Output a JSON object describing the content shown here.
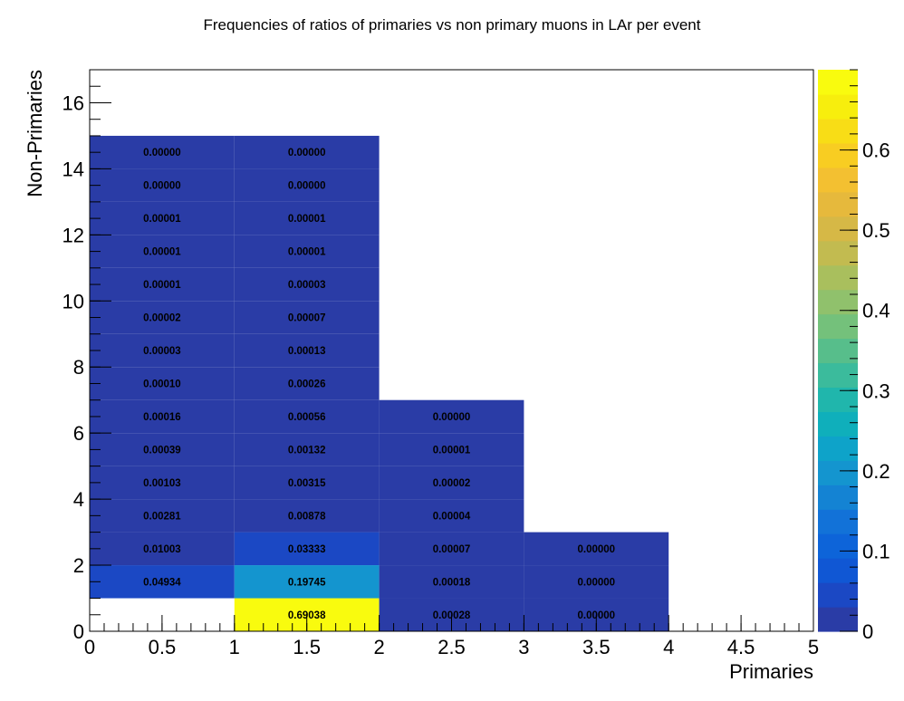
{
  "chart_data": {
    "type": "heatmap",
    "title": "Frequencies of ratios of primaries vs non primary muons in LAr per event",
    "xlabel": "Primaries",
    "ylabel": "Non-Primaries",
    "xlim": [
      0,
      5
    ],
    "ylim": [
      0,
      17
    ],
    "x_ticks": [
      "0",
      "0.5",
      "1",
      "1.5",
      "2",
      "2.5",
      "3",
      "3.5",
      "4",
      "4.5",
      "5"
    ],
    "y_ticks": [
      "0",
      "2",
      "4",
      "6",
      "8",
      "10",
      "12",
      "14",
      "16"
    ],
    "colorbar": {
      "range": [
        0,
        0.7
      ],
      "ticks": [
        "0",
        "0.1",
        "0.2",
        "0.3",
        "0.4",
        "0.5",
        "0.6"
      ],
      "palette": [
        "#2a3ca6",
        "#1b48c4",
        "#1057d4",
        "#0d64d9",
        "#1272d8",
        "#1483d3",
        "#1495cf",
        "#0ea3c9",
        "#0fafbb",
        "#20b6ac",
        "#3bbb9c",
        "#57be8b",
        "#74c17b",
        "#90c16c",
        "#a9bf5d",
        "#c2bb50",
        "#d6b846",
        "#e6b93c",
        "#f3c031",
        "#f8cd22",
        "#f8dd16",
        "#f7ee0d",
        "#f9fb0e"
      ]
    },
    "bins": [
      {
        "x": [
          0,
          1
        ],
        "y": [
          1,
          2
        ],
        "label": "0.04934",
        "value": 0.04934
      },
      {
        "x": [
          0,
          1
        ],
        "y": [
          2,
          3
        ],
        "label": "0.01003",
        "value": 0.01003
      },
      {
        "x": [
          0,
          1
        ],
        "y": [
          3,
          4
        ],
        "label": "0.00281",
        "value": 0.00281
      },
      {
        "x": [
          0,
          1
        ],
        "y": [
          4,
          5
        ],
        "label": "0.00103",
        "value": 0.00103
      },
      {
        "x": [
          0,
          1
        ],
        "y": [
          5,
          6
        ],
        "label": "0.00039",
        "value": 0.00039
      },
      {
        "x": [
          0,
          1
        ],
        "y": [
          6,
          7
        ],
        "label": "0.00016",
        "value": 0.00016
      },
      {
        "x": [
          0,
          1
        ],
        "y": [
          7,
          8
        ],
        "label": "0.00010",
        "value": 0.0001
      },
      {
        "x": [
          0,
          1
        ],
        "y": [
          8,
          9
        ],
        "label": "0.00003",
        "value": 3e-05
      },
      {
        "x": [
          0,
          1
        ],
        "y": [
          9,
          10
        ],
        "label": "0.00002",
        "value": 2e-05
      },
      {
        "x": [
          0,
          1
        ],
        "y": [
          10,
          11
        ],
        "label": "0.00001",
        "value": 1e-05
      },
      {
        "x": [
          0,
          1
        ],
        "y": [
          11,
          12
        ],
        "label": "0.00001",
        "value": 1e-05
      },
      {
        "x": [
          0,
          1
        ],
        "y": [
          12,
          13
        ],
        "label": "0.00001",
        "value": 1e-05
      },
      {
        "x": [
          0,
          1
        ],
        "y": [
          13,
          14
        ],
        "label": "0.00000",
        "value": 0.0
      },
      {
        "x": [
          0,
          1
        ],
        "y": [
          14,
          15
        ],
        "label": "0.00000",
        "value": 0.0
      },
      {
        "x": [
          1,
          2
        ],
        "y": [
          0,
          1
        ],
        "label": "0.69038",
        "value": 0.69038
      },
      {
        "x": [
          1,
          2
        ],
        "y": [
          1,
          2
        ],
        "label": "0.19745",
        "value": 0.19745
      },
      {
        "x": [
          1,
          2
        ],
        "y": [
          2,
          3
        ],
        "label": "0.03333",
        "value": 0.03333
      },
      {
        "x": [
          1,
          2
        ],
        "y": [
          3,
          4
        ],
        "label": "0.00878",
        "value": 0.00878
      },
      {
        "x": [
          1,
          2
        ],
        "y": [
          4,
          5
        ],
        "label": "0.00315",
        "value": 0.00315
      },
      {
        "x": [
          1,
          2
        ],
        "y": [
          5,
          6
        ],
        "label": "0.00132",
        "value": 0.00132
      },
      {
        "x": [
          1,
          2
        ],
        "y": [
          6,
          7
        ],
        "label": "0.00056",
        "value": 0.00056
      },
      {
        "x": [
          1,
          2
        ],
        "y": [
          7,
          8
        ],
        "label": "0.00026",
        "value": 0.00026
      },
      {
        "x": [
          1,
          2
        ],
        "y": [
          8,
          9
        ],
        "label": "0.00013",
        "value": 0.00013
      },
      {
        "x": [
          1,
          2
        ],
        "y": [
          9,
          10
        ],
        "label": "0.00007",
        "value": 7e-05
      },
      {
        "x": [
          1,
          2
        ],
        "y": [
          10,
          11
        ],
        "label": "0.00003",
        "value": 3e-05
      },
      {
        "x": [
          1,
          2
        ],
        "y": [
          11,
          12
        ],
        "label": "0.00001",
        "value": 1e-05
      },
      {
        "x": [
          1,
          2
        ],
        "y": [
          12,
          13
        ],
        "label": "0.00001",
        "value": 1e-05
      },
      {
        "x": [
          1,
          2
        ],
        "y": [
          13,
          14
        ],
        "label": "0.00000",
        "value": 0.0
      },
      {
        "x": [
          1,
          2
        ],
        "y": [
          14,
          15
        ],
        "label": "0.00000",
        "value": 0.0
      },
      {
        "x": [
          2,
          3
        ],
        "y": [
          0,
          1
        ],
        "label": "0.00028",
        "value": 0.00028
      },
      {
        "x": [
          2,
          3
        ],
        "y": [
          1,
          2
        ],
        "label": "0.00018",
        "value": 0.00018
      },
      {
        "x": [
          2,
          3
        ],
        "y": [
          2,
          3
        ],
        "label": "0.00007",
        "value": 7e-05
      },
      {
        "x": [
          2,
          3
        ],
        "y": [
          3,
          4
        ],
        "label": "0.00004",
        "value": 4e-05
      },
      {
        "x": [
          2,
          3
        ],
        "y": [
          4,
          5
        ],
        "label": "0.00002",
        "value": 2e-05
      },
      {
        "x": [
          2,
          3
        ],
        "y": [
          5,
          6
        ],
        "label": "0.00001",
        "value": 1e-05
      },
      {
        "x": [
          2,
          3
        ],
        "y": [
          6,
          7
        ],
        "label": "0.00000",
        "value": 0.0
      },
      {
        "x": [
          3,
          4
        ],
        "y": [
          0,
          1
        ],
        "label": "0.00000",
        "value": 0.0
      },
      {
        "x": [
          3,
          4
        ],
        "y": [
          1,
          2
        ],
        "label": "0.00000",
        "value": 0.0
      },
      {
        "x": [
          3,
          4
        ],
        "y": [
          2,
          3
        ],
        "label": "0.00000",
        "value": 0.0
      }
    ]
  }
}
